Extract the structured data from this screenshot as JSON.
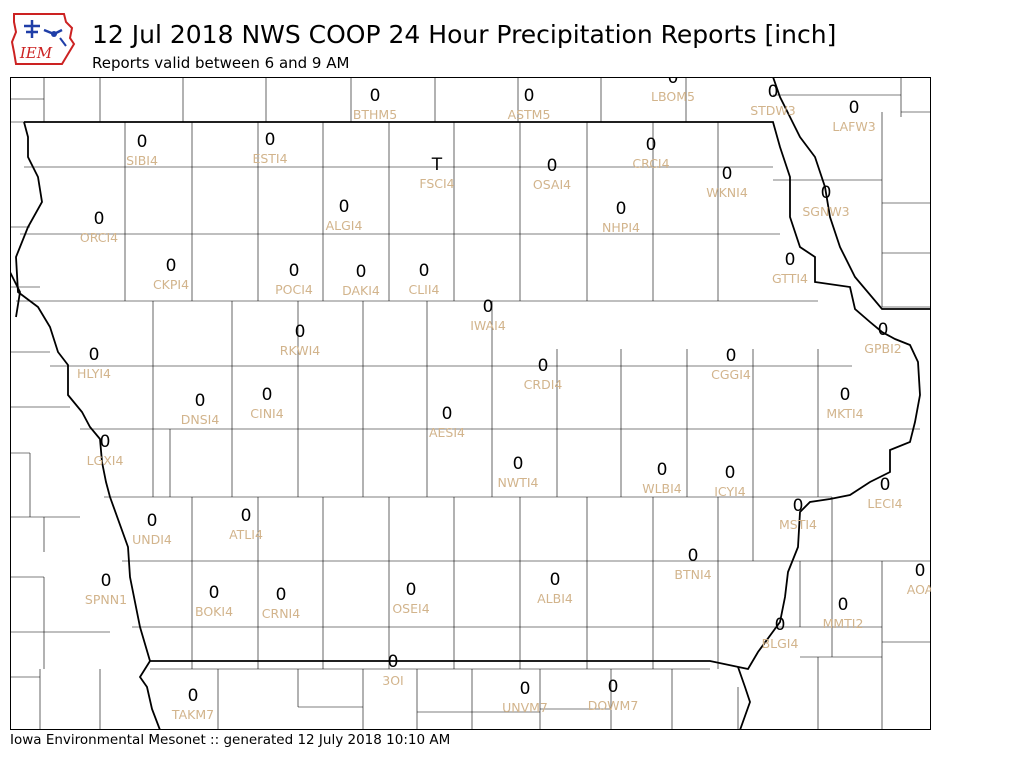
{
  "header": {
    "title": "12 Jul 2018 NWS COOP 24 Hour Precipitation Reports [inch]",
    "subtitle": "Reports valid between 6 and 9 AM"
  },
  "logo": {
    "text": "IEM"
  },
  "footer": {
    "text": "Iowa Environmental Mesonet :: generated 12 July 2018 10:10 AM"
  },
  "colors": {
    "value_text": "#000000",
    "station_label": "#d2b48c",
    "county_lines": "#000000",
    "logo_red": "#cc2222",
    "logo_blue": "#1f3ea8"
  },
  "stations": [
    {
      "id": "BTHM5",
      "value": "0"
    },
    {
      "id": "ASTM5",
      "value": "0"
    },
    {
      "id": "LBOM5",
      "value": "0"
    },
    {
      "id": "STDW3",
      "value": "0"
    },
    {
      "id": "LAFW3",
      "value": "0"
    },
    {
      "id": "SIBI4",
      "value": "0"
    },
    {
      "id": "ESTI4",
      "value": "0"
    },
    {
      "id": "FSCI4",
      "value": "T"
    },
    {
      "id": "OSAI4",
      "value": "0"
    },
    {
      "id": "CRCI4",
      "value": "0"
    },
    {
      "id": "WKNI4",
      "value": "0"
    },
    {
      "id": "SGNW3",
      "value": "0"
    },
    {
      "id": "ORCI4",
      "value": "0"
    },
    {
      "id": "ALGI4",
      "value": "0"
    },
    {
      "id": "NHPI4",
      "value": "0"
    },
    {
      "id": "CKPI4",
      "value": "0"
    },
    {
      "id": "POCI4",
      "value": "0"
    },
    {
      "id": "DAKI4",
      "value": "0"
    },
    {
      "id": "CLII4",
      "value": "0"
    },
    {
      "id": "GTTI4",
      "value": "0"
    },
    {
      "id": "IWAI4",
      "value": "0"
    },
    {
      "id": "RKWI4",
      "value": "0"
    },
    {
      "id": "GPBI2",
      "value": "0"
    },
    {
      "id": "HLYI4",
      "value": "0"
    },
    {
      "id": "CRDI4",
      "value": "0"
    },
    {
      "id": "CGGI4",
      "value": "0"
    },
    {
      "id": "DNSI4",
      "value": "0"
    },
    {
      "id": "CINI4",
      "value": "0"
    },
    {
      "id": "MKTI4",
      "value": "0"
    },
    {
      "id": "AESI4",
      "value": "0"
    },
    {
      "id": "LGXI4",
      "value": "0"
    },
    {
      "id": "NWTI4",
      "value": "0"
    },
    {
      "id": "WLBI4",
      "value": "0"
    },
    {
      "id": "ICYI4",
      "value": "0"
    },
    {
      "id": "LECI4",
      "value": "0"
    },
    {
      "id": "UNDI4",
      "value": "0"
    },
    {
      "id": "ATLI4",
      "value": "0"
    },
    {
      "id": "MSTI4",
      "value": "0"
    },
    {
      "id": "BTNI4",
      "value": "0"
    },
    {
      "id": "SPNN1",
      "value": "0"
    },
    {
      "id": "BOKI4",
      "value": "0"
    },
    {
      "id": "CRNI4",
      "value": "0"
    },
    {
      "id": "OSEI4",
      "value": "0"
    },
    {
      "id": "ALBI4",
      "value": "0"
    },
    {
      "id": "AOA",
      "value": "0"
    },
    {
      "id": "MMTI2",
      "value": "0"
    },
    {
      "id": "BLGI4",
      "value": "0"
    },
    {
      "id": "3OI",
      "value": "0"
    },
    {
      "id": "TAKM7",
      "value": "0"
    },
    {
      "id": "UNVM7",
      "value": "0"
    },
    {
      "id": "DOWM7",
      "value": "0"
    }
  ]
}
